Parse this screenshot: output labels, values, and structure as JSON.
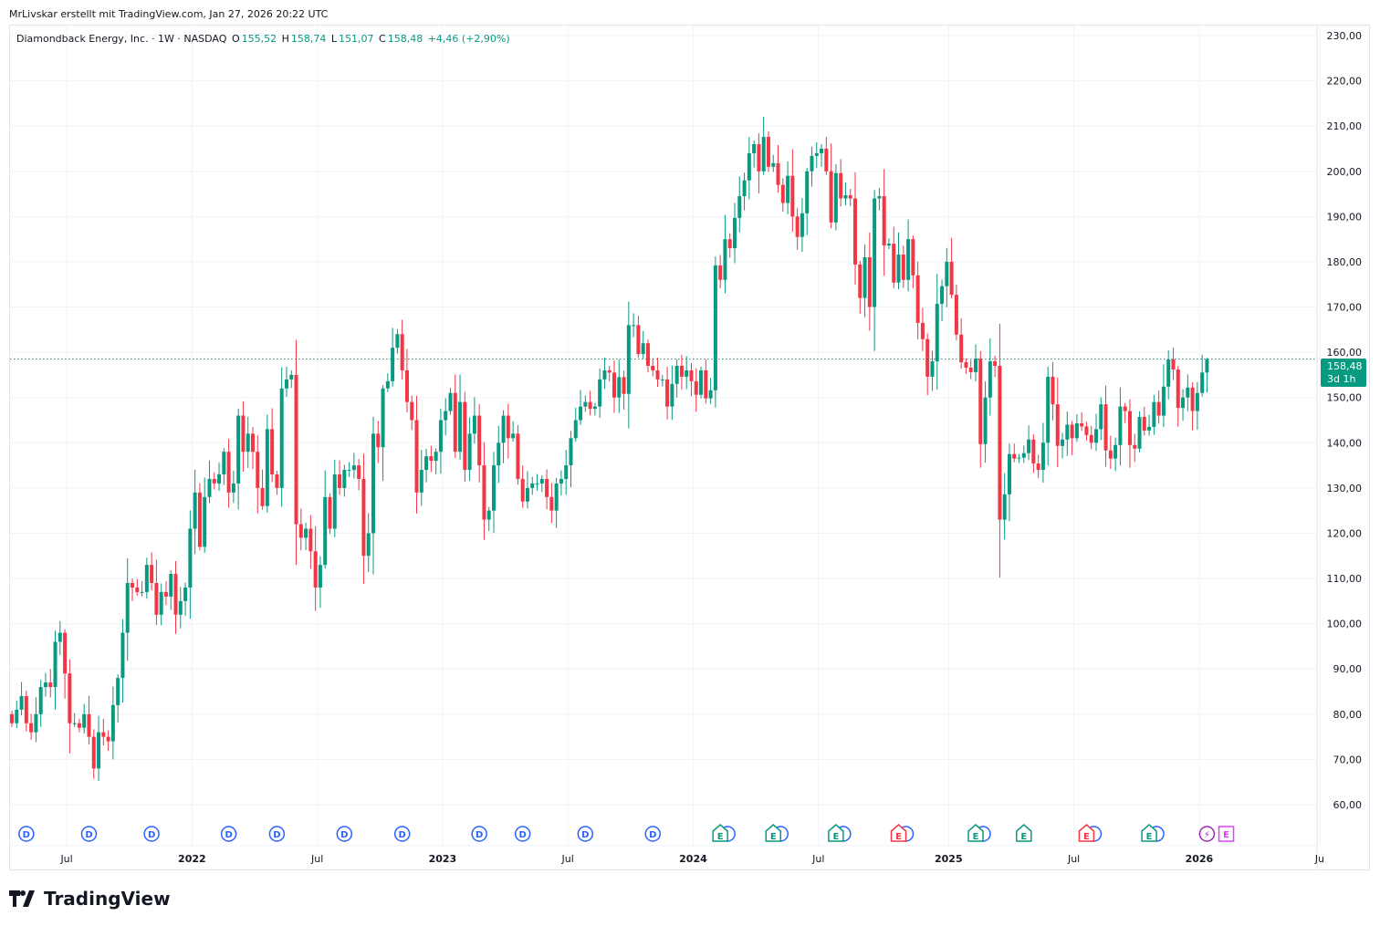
{
  "attribution": "MrLivskar erstellt mit TradingView.com, Jan 27, 2026 20:22 UTC",
  "legend": {
    "symbol": "Diamondback Energy, Inc. · 1W · NASDAQ",
    "o_label": "O",
    "o": "155,52",
    "h_label": "H",
    "h": "158,74",
    "l_label": "L",
    "l": "151,07",
    "c_label": "C",
    "c": "158,48",
    "change": "+4,46 (+2,90%)"
  },
  "price_label": {
    "price": "158,48",
    "countdown": "3d 1h"
  },
  "brand": "TradingView",
  "colors": {
    "up": "#089981",
    "down": "#F23645",
    "grid": "#f0f3fa",
    "dividend": "#2962FF",
    "earnings_up": "#089981",
    "earnings_down": "#F23645",
    "split": "#9C27B0",
    "earnings_upcoming": "#E040FB"
  },
  "chart_data": {
    "type": "candlestick",
    "title": "Diamondback Energy, Inc. · 1W · NASDAQ",
    "interval": "1W",
    "ylim": [
      60,
      230
    ],
    "y_ticks": [
      "60,00",
      "70,00",
      "80,00",
      "90,00",
      "100,00",
      "110,00",
      "120,00",
      "130,00",
      "140,00",
      "150,00",
      "160,00",
      "170,00",
      "180,00",
      "190,00",
      "200,00",
      "210,00",
      "220,00",
      "230,00"
    ],
    "y_tick_values": [
      60,
      70,
      80,
      90,
      100,
      110,
      120,
      130,
      140,
      150,
      160,
      170,
      180,
      190,
      200,
      210,
      220,
      230
    ],
    "x_ticks": [
      {
        "label": "Jul",
        "index": 11,
        "bold": false
      },
      {
        "label": "2022",
        "index": 37,
        "bold": true
      },
      {
        "label": "Jul",
        "index": 63,
        "bold": false
      },
      {
        "label": "2023",
        "index": 89,
        "bold": true
      },
      {
        "label": "Jul",
        "index": 115,
        "bold": false
      },
      {
        "label": "2024",
        "index": 141,
        "bold": true
      },
      {
        "label": "Jul",
        "index": 167,
        "bold": false
      },
      {
        "label": "2025",
        "index": 194,
        "bold": true
      },
      {
        "label": "Jul",
        "index": 220,
        "bold": false
      },
      {
        "label": "2026",
        "index": 246,
        "bold": true
      },
      {
        "label": "Ju",
        "index": 271,
        "bold": false
      }
    ],
    "last": {
      "open": 155.52,
      "high": 158.74,
      "low": 151.07,
      "close": 158.48
    },
    "first_open": 80,
    "close": [
      78,
      81,
      84,
      78,
      76,
      80,
      86,
      87,
      86,
      96,
      98,
      89,
      78,
      78,
      77,
      80,
      75,
      68,
      76,
      75,
      74,
      82,
      88,
      98,
      109,
      108,
      107,
      107,
      113,
      109,
      102,
      107,
      106,
      111,
      102,
      105,
      108,
      121,
      129,
      117,
      128,
      132,
      131,
      133,
      138,
      129,
      131,
      146,
      138,
      142,
      138,
      130,
      126,
      143,
      133,
      130,
      152,
      154,
      155,
      122,
      119,
      121,
      116,
      108,
      113,
      128,
      121,
      133,
      130,
      134,
      134,
      135,
      132,
      115,
      120,
      142,
      139,
      152,
      153.6,
      161,
      164,
      156,
      149,
      145,
      129,
      134,
      137,
      136,
      138,
      145,
      147,
      151,
      138,
      149,
      134,
      142,
      146,
      135,
      123,
      125,
      135,
      140,
      146,
      141,
      142,
      132,
      127,
      130,
      131,
      131,
      132,
      128,
      125,
      131,
      132,
      135,
      141,
      145,
      148,
      149,
      147.5,
      148,
      154,
      156,
      155.5,
      150,
      154.5,
      150.8,
      166,
      166,
      159.6,
      162,
      157,
      156,
      154,
      154,
      148,
      153,
      157,
      154.6,
      156,
      153.6,
      150.6,
      156,
      149.8,
      151.6,
      179.2,
      176,
      185,
      183,
      189.7,
      194.5,
      198,
      204,
      206,
      200,
      207.6,
      201,
      201.8,
      197,
      193,
      199,
      190,
      185.5,
      190.7,
      200,
      203.4,
      204,
      205,
      200,
      188.7,
      199.6,
      194,
      194.7,
      194,
      179.4,
      172,
      181,
      170,
      194,
      194.5,
      183.6,
      184,
      175.4,
      181.6,
      176,
      185,
      177,
      166.5,
      162.9,
      154.6,
      158,
      170.7,
      174.6,
      180,
      172.7,
      163.9,
      157.8,
      156.6,
      155.6,
      158.6,
      139.7,
      150,
      158,
      157,
      123,
      128.6,
      137.5,
      136.5,
      136.7,
      137.7,
      140.7,
      135.4,
      134,
      140,
      154.6,
      148.5,
      139.3,
      140.7,
      144,
      141,
      144.3,
      143.6,
      141.7,
      140,
      143,
      148.5,
      138.3,
      136.5,
      139.5,
      148,
      147,
      139.5,
      138.7,
      145.7,
      142.7,
      143.5,
      149,
      146,
      152.4,
      158.4,
      156.2,
      147.7,
      150,
      152.2,
      147,
      151,
      155.52,
      158.48
    ],
    "events": [
      {
        "type": "dividend",
        "glyph": "D",
        "index": 3
      },
      {
        "type": "dividend",
        "glyph": "D",
        "index": 16
      },
      {
        "type": "dividend",
        "glyph": "D",
        "index": 29
      },
      {
        "type": "dividend",
        "glyph": "D",
        "index": 45
      },
      {
        "type": "dividend",
        "glyph": "D",
        "index": 55
      },
      {
        "type": "dividend",
        "glyph": "D",
        "index": 69
      },
      {
        "type": "dividend",
        "glyph": "D",
        "index": 81
      },
      {
        "type": "dividend",
        "glyph": "D",
        "index": 97
      },
      {
        "type": "dividend",
        "glyph": "D",
        "index": 106
      },
      {
        "type": "dividend",
        "glyph": "D",
        "index": 119
      },
      {
        "type": "dividend",
        "glyph": "D",
        "index": 133
      },
      {
        "type": "earnings_up",
        "glyph": "E",
        "index": 147,
        "with_dividend": true
      },
      {
        "type": "earnings_up",
        "glyph": "E",
        "index": 158,
        "with_dividend": true
      },
      {
        "type": "earnings_up",
        "glyph": "E",
        "index": 171,
        "with_dividend": true
      },
      {
        "type": "earnings_down",
        "glyph": "E",
        "index": 184,
        "with_dividend": true
      },
      {
        "type": "earnings_up",
        "glyph": "E",
        "index": 200,
        "with_dividend": true
      },
      {
        "type": "earnings_up",
        "glyph": "E",
        "index": 210,
        "with_dividend": false
      },
      {
        "type": "earnings_down",
        "glyph": "E",
        "index": 223,
        "with_dividend": true
      },
      {
        "type": "earnings_up",
        "glyph": "E",
        "index": 236,
        "with_dividend": true
      },
      {
        "type": "split",
        "glyph": "⚡",
        "index": 248
      },
      {
        "type": "earnings_upcoming",
        "glyph": "E",
        "index": 252
      }
    ]
  }
}
